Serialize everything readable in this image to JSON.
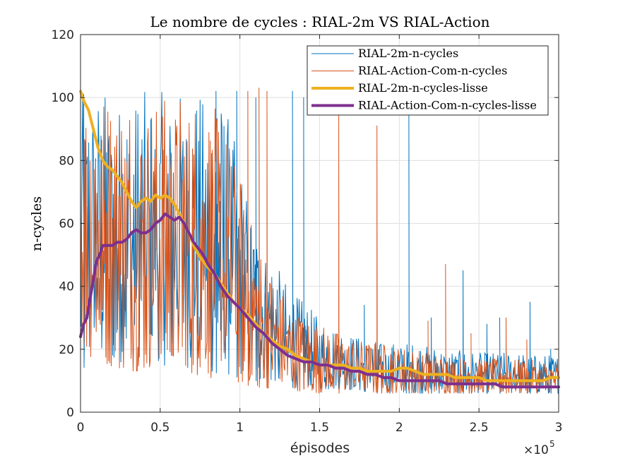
{
  "chart_data": {
    "type": "line",
    "title": "Le nombre de cycles : RIAL-2m VS RIAL-Action",
    "xlabel": "épisodes",
    "ylabel": "n-cycles",
    "x_exponent_base": "×10",
    "x_exponent_power": "5",
    "xlim": [
      0,
      300000
    ],
    "ylim": [
      0,
      120
    ],
    "xticks": [
      0,
      50000,
      100000,
      150000,
      200000,
      250000,
      300000
    ],
    "xtick_labels": [
      "0",
      "0.5",
      "1",
      "1.5",
      "2",
      "2.5",
      "3"
    ],
    "yticks": [
      0,
      20,
      40,
      60,
      80,
      100,
      120
    ],
    "ytick_labels": [
      "0",
      "20",
      "40",
      "60",
      "80",
      "100",
      "120"
    ],
    "grid": true,
    "legend_position": "top-right",
    "series": [
      {
        "name": "RIAL-2m-n-cycles",
        "color": "#0072bd",
        "width": 1,
        "kind": "raw",
        "envelope_x": [
          0,
          10000,
          30000,
          50000,
          70000,
          90000,
          110000,
          130000,
          150000,
          170000,
          190000,
          210000,
          230000,
          250000,
          270000,
          300000
        ],
        "envelope_lo": [
          14,
          15,
          16,
          15,
          14,
          12,
          10,
          8,
          7,
          7,
          6,
          6,
          6,
          6,
          6,
          6
        ],
        "envelope_hi": [
          102,
          102,
          102,
          102,
          102,
          100,
          60,
          40,
          30,
          25,
          22,
          22,
          20,
          19,
          19,
          18
        ],
        "spikes": [
          [
            2000,
            101
          ],
          [
            85000,
            102
          ],
          [
            98000,
            102
          ],
          [
            110000,
            100
          ],
          [
            133000,
            102
          ],
          [
            140000,
            100
          ],
          [
            178000,
            34
          ],
          [
            206000,
            95
          ],
          [
            220000,
            30
          ],
          [
            240000,
            45
          ],
          [
            255000,
            28
          ],
          [
            263000,
            30
          ],
          [
            282000,
            35
          ],
          [
            295000,
            20
          ]
        ]
      },
      {
        "name": "RIAL-Action-Com-n-cycles",
        "color": "#d95319",
        "width": 1,
        "kind": "raw",
        "envelope_x": [
          0,
          10000,
          30000,
          50000,
          70000,
          90000,
          110000,
          130000,
          150000,
          170000,
          190000,
          210000,
          230000,
          250000,
          270000,
          300000
        ],
        "envelope_lo": [
          20,
          16,
          13,
          13,
          12,
          10,
          8,
          7,
          6,
          6,
          6,
          6,
          6,
          6,
          6,
          6
        ],
        "envelope_hi": [
          102,
          102,
          102,
          102,
          102,
          95,
          55,
          35,
          28,
          24,
          22,
          20,
          18,
          17,
          17,
          16
        ],
        "spikes": [
          [
            105000,
            102
          ],
          [
            112000,
            103
          ],
          [
            117000,
            102
          ],
          [
            162000,
            96
          ],
          [
            186000,
            91
          ],
          [
            229000,
            47
          ],
          [
            218000,
            29
          ],
          [
            245000,
            25
          ],
          [
            267000,
            30
          ],
          [
            280000,
            23
          ]
        ]
      },
      {
        "name": "RIAL-2m-n-cycles-lisse",
        "color": "#edb120",
        "width": 4,
        "kind": "smooth",
        "x": [
          0,
          2000,
          5000,
          8000,
          11000,
          14000,
          17000,
          20000,
          23000,
          26000,
          29000,
          32000,
          35000,
          38000,
          41000,
          44000,
          47000,
          50000,
          53000,
          56000,
          59000,
          62000,
          65000,
          68000,
          71000,
          74000,
          77000,
          80000,
          84000,
          88000,
          92000,
          96000,
          100000,
          105000,
          110000,
          115000,
          120000,
          125000,
          130000,
          135000,
          140000,
          145000,
          150000,
          155000,
          160000,
          165000,
          170000,
          175000,
          180000,
          185000,
          190000,
          195000,
          200000,
          205000,
          210000,
          215000,
          220000,
          225000,
          230000,
          235000,
          240000,
          245000,
          250000,
          255000,
          260000,
          265000,
          270000,
          275000,
          280000,
          285000,
          290000,
          295000,
          300000
        ],
        "y": [
          102,
          99,
          96,
          90,
          84,
          80,
          78,
          77,
          75,
          73,
          70,
          67,
          65,
          67,
          68,
          67,
          69,
          68,
          69,
          68,
          66,
          63,
          60,
          57,
          53,
          50,
          48,
          46,
          44,
          41,
          38,
          35,
          33,
          31,
          28,
          25,
          23,
          21,
          20,
          18,
          17,
          16,
          15,
          15,
          15,
          15,
          14,
          14,
          13,
          13,
          13,
          13,
          14,
          14,
          13,
          12,
          12,
          12,
          12,
          11,
          11,
          11,
          11,
          10,
          10,
          10,
          10,
          10,
          10,
          10,
          10,
          11,
          11
        ]
      },
      {
        "name": "RIAL-Action-Com-n-cycles-lisse",
        "color": "#7e2f8e",
        "width": 4,
        "kind": "smooth",
        "x": [
          0,
          2000,
          4000,
          6000,
          8000,
          10000,
          12000,
          14000,
          17000,
          20000,
          23000,
          26000,
          29000,
          32000,
          35000,
          38000,
          41000,
          44000,
          47000,
          50000,
          53000,
          56000,
          59000,
          62000,
          65000,
          68000,
          71000,
          74000,
          77000,
          80000,
          84000,
          88000,
          92000,
          96000,
          100000,
          105000,
          110000,
          115000,
          120000,
          125000,
          130000,
          135000,
          140000,
          145000,
          150000,
          155000,
          160000,
          165000,
          170000,
          175000,
          180000,
          185000,
          190000,
          195000,
          200000,
          205000,
          210000,
          215000,
          220000,
          225000,
          230000,
          235000,
          240000,
          245000,
          250000,
          255000,
          260000,
          265000,
          270000,
          275000,
          280000,
          285000,
          290000,
          295000,
          300000
        ],
        "y": [
          24,
          28,
          30,
          36,
          42,
          48,
          50,
          53,
          53,
          53,
          54,
          54,
          55,
          57,
          58,
          57,
          57,
          58,
          60,
          61,
          63,
          62,
          61,
          62,
          60,
          57,
          54,
          52,
          50,
          47,
          44,
          40,
          37,
          35,
          33,
          30,
          27,
          25,
          22,
          20,
          18,
          17,
          16,
          16,
          15,
          15,
          14,
          14,
          13,
          13,
          12,
          12,
          11,
          11,
          10,
          10,
          10,
          10,
          10,
          10,
          9,
          9,
          9,
          9,
          9,
          9,
          9,
          8,
          8,
          8,
          8,
          8,
          8,
          8,
          8
        ]
      }
    ]
  }
}
